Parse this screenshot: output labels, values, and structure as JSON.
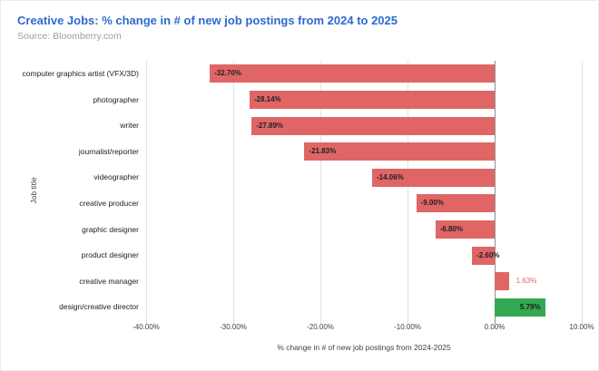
{
  "header": {
    "title": "Creative Jobs: % change in # of new job postings from 2024 to 2025",
    "source": "Source: Bloomberry.com"
  },
  "chart_data": {
    "type": "bar",
    "orientation": "horizontal",
    "title": "Creative Jobs: % change in # of new job postings from 2024 to 2025",
    "subtitle": "Source: Bloomberry.com",
    "xlabel": "% change in # of new job postings from 2024-2025",
    "ylabel": "Job title",
    "xlim": [
      -40,
      10
    ],
    "grid": true,
    "legend": "none",
    "x_tick_values": [
      -40,
      -30,
      -20,
      -10,
      0,
      10
    ],
    "x_tick_labels": [
      "-40.00%",
      "-30.00%",
      "-20.00%",
      "-10.00%",
      "0.00%",
      "10.00%"
    ],
    "categories": [
      "computer graphics artist (VFX/3D)",
      "photographer",
      "writer",
      "journalist/reporter",
      "videographer",
      "creative producer",
      "graphic designer",
      "product designer",
      "creative manager",
      "design/creative director"
    ],
    "values": [
      -32.7,
      -28.14,
      -27.89,
      -21.83,
      -14.06,
      -9.0,
      -6.8,
      -2.6,
      1.63,
      5.79
    ],
    "value_labels": [
      "-32.70%",
      "-28.14%",
      "-27.89%",
      "-21.83%",
      "-14.06%",
      "-9.00%",
      "-6.80%",
      "-2.60%",
      "1.63%",
      "5.79%"
    ],
    "bar_colors": [
      "#e06666",
      "#e06666",
      "#e06666",
      "#e06666",
      "#e06666",
      "#e06666",
      "#e06666",
      "#e06666",
      "#e06666",
      "#34a853"
    ],
    "label_placements": [
      "inside-start",
      "inside-start",
      "inside-start",
      "inside-start",
      "inside-start",
      "inside-start",
      "inside-start",
      "inside-start",
      "outside-end",
      "inside-end"
    ],
    "label_colors": [
      "#1f1f1f",
      "#1f1f1f",
      "#1f1f1f",
      "#1f1f1f",
      "#1f1f1f",
      "#1f1f1f",
      "#1f1f1f",
      "#1f1f1f",
      "#e06666",
      "#1f1f1f"
    ]
  },
  "colors": {
    "title_blue": "#2d6ace",
    "source_gray": "#9aa0a6",
    "bar_red": "#e06666",
    "bar_green": "#34a853",
    "gridline": "#e3e3e3",
    "zero_line": "#8f8f8f",
    "axis_text": "#424242",
    "annotation_dark": "#1f1f1f"
  }
}
